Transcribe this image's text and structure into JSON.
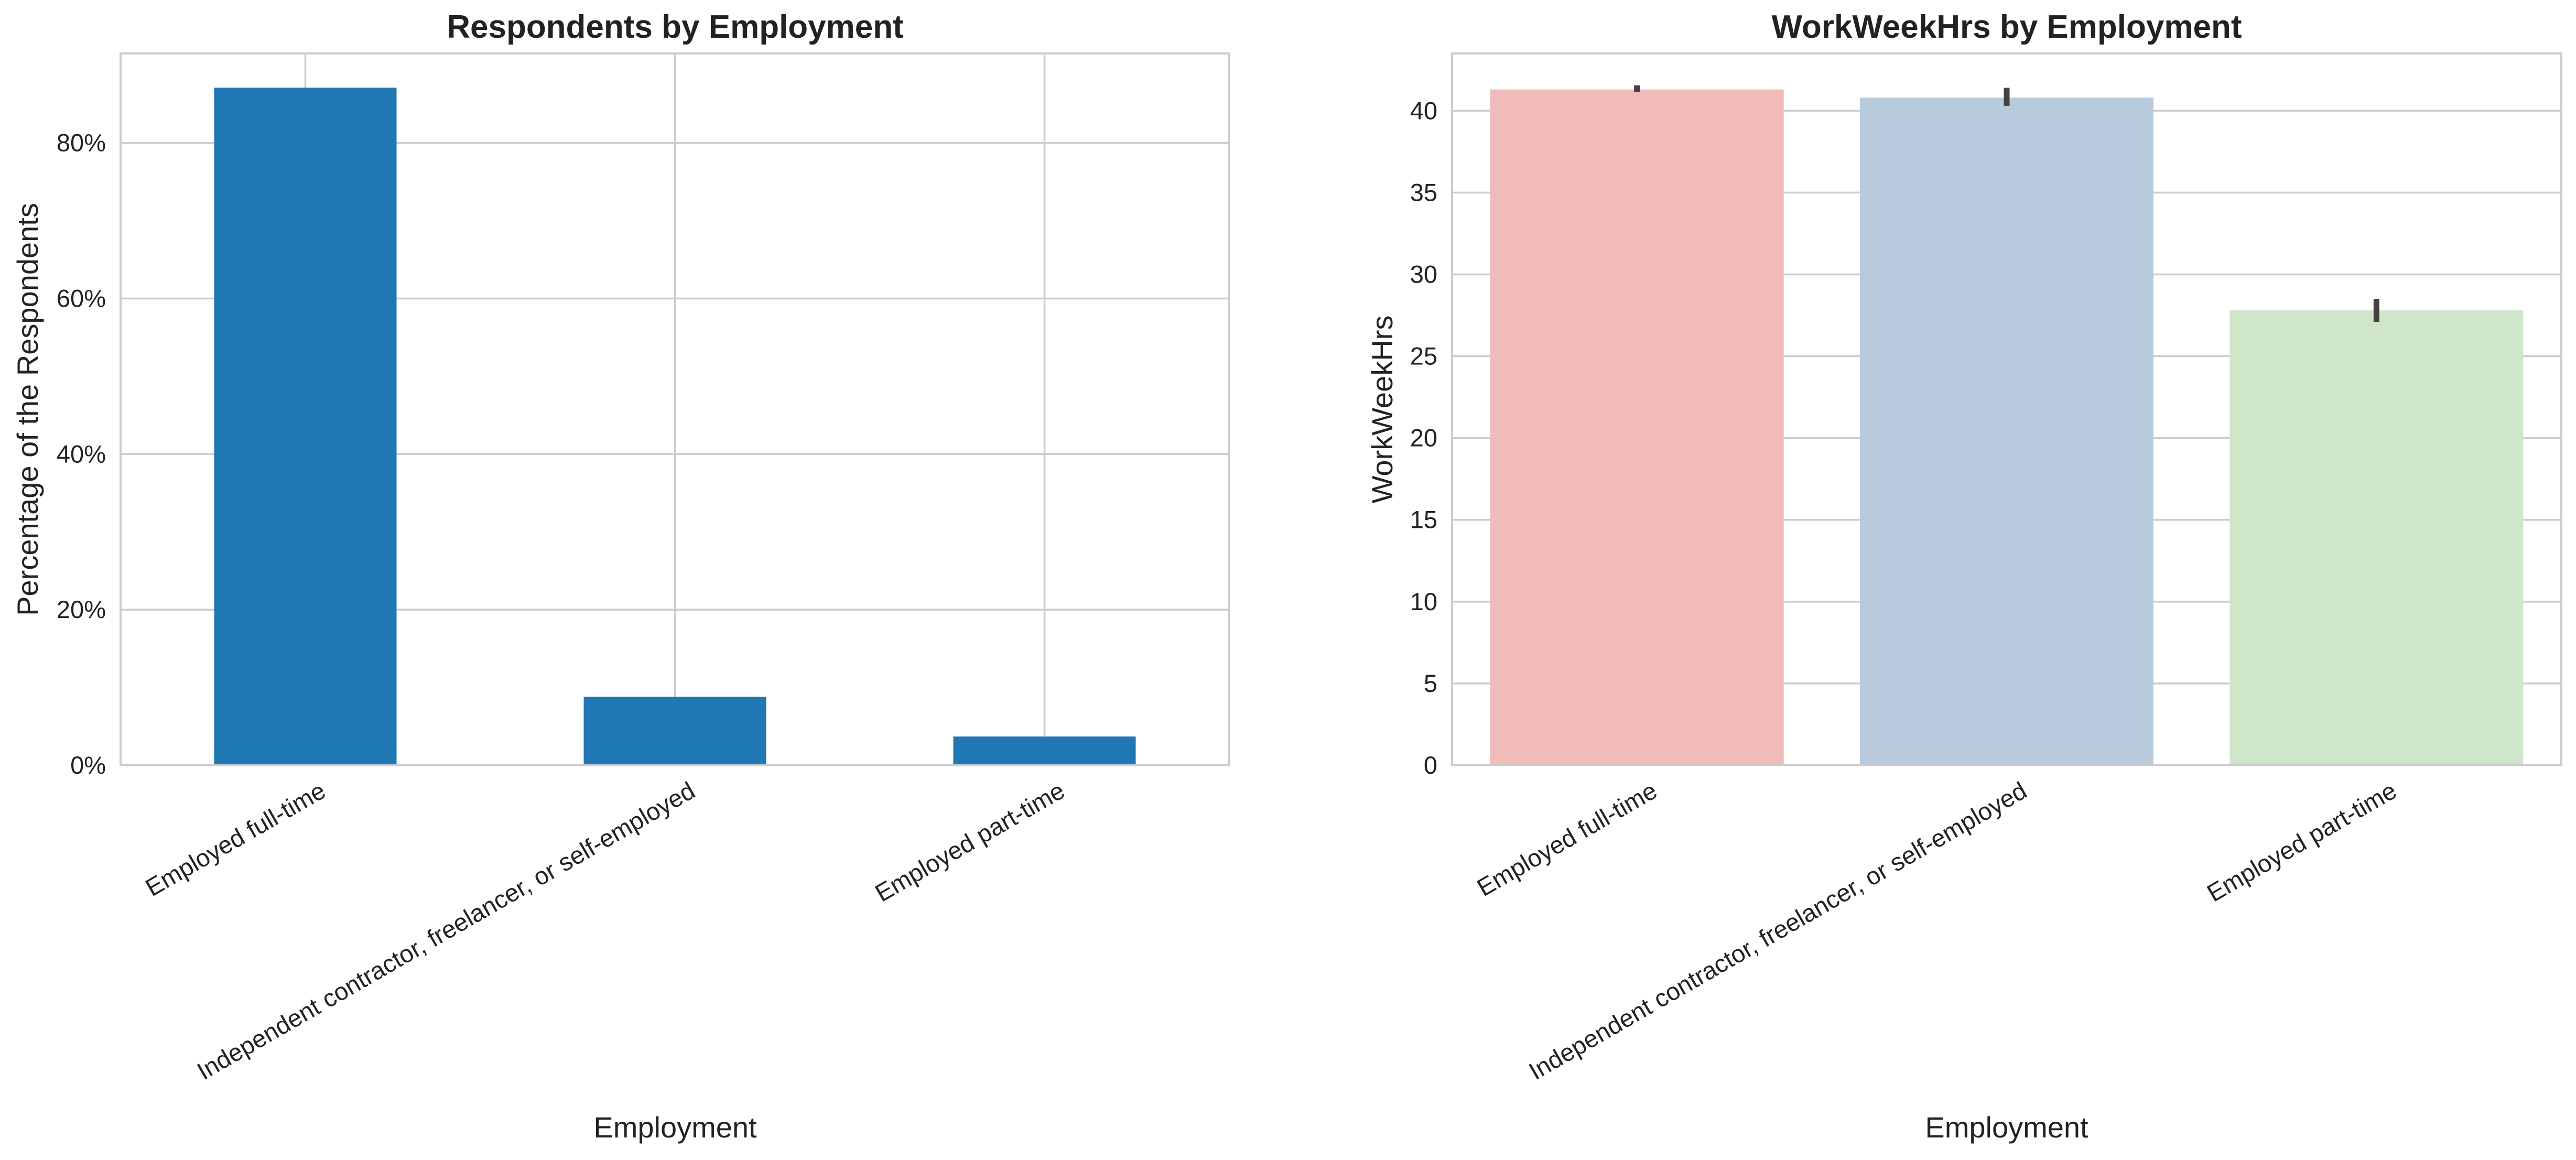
{
  "chart_data": [
    {
      "type": "bar",
      "title": "Respondents by Employment",
      "xlabel": "Employment",
      "ylabel": "Percentage of the Respondents",
      "categories": [
        "Employed full-time",
        "Independent contractor, freelancer, or self-employed",
        "Employed part-time"
      ],
      "values": [
        87.1,
        8.8,
        3.7
      ],
      "value_unit": "percent",
      "ylim": [
        0,
        91.5
      ],
      "yticks": [
        0,
        20,
        40,
        60,
        80
      ],
      "ytick_labels": [
        "0%",
        "20%",
        "40%",
        "60%",
        "80%"
      ],
      "bar_color": "#1f77b4",
      "grid": true
    },
    {
      "type": "bar",
      "title": "WorkWeekHrs by Employment",
      "xlabel": "Employment",
      "ylabel": "WorkWeekHrs",
      "categories": [
        "Employed full-time",
        "Independent contractor, freelancer, or self-employed",
        "Employed part-time"
      ],
      "values": [
        41.3,
        40.8,
        27.8
      ],
      "error_bars": [
        [
          41.15,
          41.55
        ],
        [
          40.3,
          41.4
        ],
        [
          27.1,
          28.5
        ]
      ],
      "ylim": [
        0,
        43.5
      ],
      "yticks": [
        0,
        5,
        10,
        15,
        20,
        25,
        30,
        35,
        40
      ],
      "ytick_labels": [
        "0",
        "5",
        "10",
        "15",
        "20",
        "25",
        "30",
        "35",
        "40"
      ],
      "bar_colors": [
        "#f1bbba",
        "#b8cbdd",
        "#cfe6ca"
      ],
      "error_color": "#424242",
      "grid": true
    }
  ]
}
